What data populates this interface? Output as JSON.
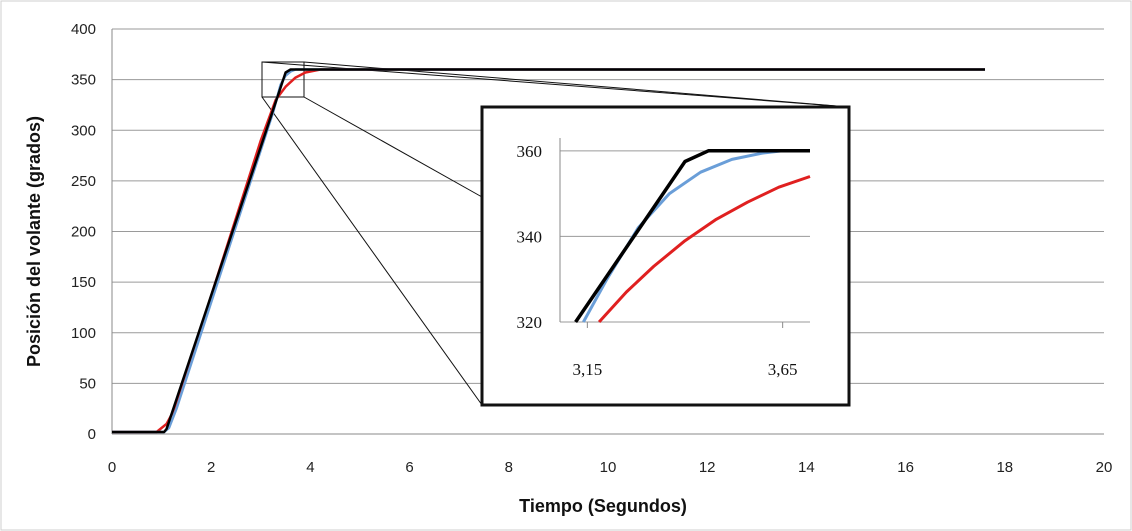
{
  "chart_data": {
    "type": "line",
    "xlabel": "Tiempo (Segundos)",
    "ylabel": "Posición del volante (grados)",
    "xlim": [
      0,
      20
    ],
    "ylim": [
      0,
      400
    ],
    "x_ticks": [
      "0",
      "2",
      "4",
      "6",
      "8",
      "10",
      "12",
      "14",
      "16",
      "18",
      "20"
    ],
    "y_ticks": [
      "0",
      "50",
      "100",
      "150",
      "200",
      "250",
      "300",
      "350",
      "400"
    ],
    "grid": "horizontal",
    "series": [
      {
        "color": "#000000",
        "x": [
          0,
          1.05,
          1.1,
          3.5,
          3.6,
          17.6
        ],
        "y": [
          2,
          2,
          5,
          357,
          360,
          360
        ]
      },
      {
        "color": "#6a9ed8",
        "x": [
          0,
          1.05,
          1.15,
          1.3,
          3.25,
          3.4,
          3.5,
          3.6,
          3.7,
          17.6
        ],
        "y": [
          2,
          2,
          6,
          25,
          318,
          345,
          354,
          358,
          360,
          360
        ]
      },
      {
        "color": "#e02020",
        "x": [
          0,
          0.9,
          1.1,
          1.3,
          1.5,
          3.0,
          3.3,
          3.5,
          3.7,
          3.9,
          4.2,
          17.6
        ],
        "y": [
          2,
          2,
          10,
          28,
          60,
          290,
          330,
          343,
          352,
          357,
          360,
          360
        ]
      }
    ],
    "inset": {
      "xlim": [
        3.08,
        3.72
      ],
      "ylim": [
        320,
        363
      ],
      "x_ticks": [
        "3,15",
        "3,65"
      ],
      "x_tick_values": [
        3.15,
        3.65
      ],
      "y_ticks": [
        "320",
        "340",
        "360"
      ],
      "y_tick_values": [
        320,
        340,
        360
      ],
      "series": [
        {
          "color": "#000000",
          "x": [
            3.12,
            3.4,
            3.46,
            3.72
          ],
          "y": [
            320,
            357.5,
            360,
            360
          ]
        },
        {
          "color": "#6a9ed8",
          "x": [
            3.14,
            3.2,
            3.28,
            3.36,
            3.44,
            3.52,
            3.6,
            3.65,
            3.72
          ],
          "y": [
            320,
            330,
            342,
            350,
            355,
            358,
            359.5,
            360,
            360
          ]
        },
        {
          "color": "#e02020",
          "x": [
            3.18,
            3.25,
            3.32,
            3.4,
            3.48,
            3.56,
            3.64,
            3.72
          ],
          "y": [
            320,
            327,
            333,
            339,
            344,
            348,
            351.5,
            354
          ]
        }
      ]
    }
  }
}
